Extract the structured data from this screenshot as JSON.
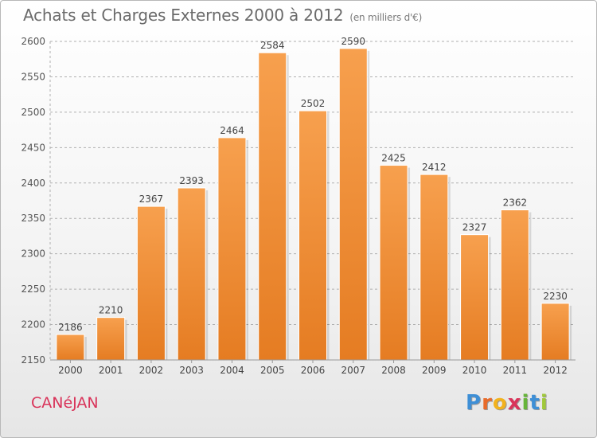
{
  "header": {
    "title": "Achats et Charges Externes 2000 à 2012",
    "unit": "(en milliers d'€)"
  },
  "footer": {
    "commune": "CANéJAN",
    "logo_letters": [
      "P",
      "r",
      "o",
      "x",
      "i",
      "t",
      "i"
    ]
  },
  "colors": {
    "bar_top": "#f7a04e",
    "bar_bottom": "#e57c22",
    "grid": "#b0b0b0",
    "commune": "#d9345a",
    "logo": [
      "#3e8fd6",
      "#e96b2a",
      "#f2b21d",
      "#d9345a",
      "#67b53a",
      "#3e8fd6",
      "#a0c93a"
    ]
  },
  "chart_data": {
    "type": "bar",
    "title": "Achats et Charges Externes 2000 à 2012",
    "subtitle": "(en milliers d'€)",
    "categories": [
      "2000",
      "2001",
      "2002",
      "2003",
      "2004",
      "2005",
      "2006",
      "2007",
      "2008",
      "2009",
      "2010",
      "2011",
      "2012"
    ],
    "values": [
      2186,
      2210,
      2367,
      2393,
      2464,
      2584,
      2502,
      2590,
      2425,
      2412,
      2327,
      2362,
      2230
    ],
    "ylim": [
      2150,
      2600
    ],
    "yticks": [
      2150,
      2200,
      2250,
      2300,
      2350,
      2400,
      2450,
      2500,
      2550,
      2600
    ],
    "grid": true,
    "data_labels": true
  }
}
